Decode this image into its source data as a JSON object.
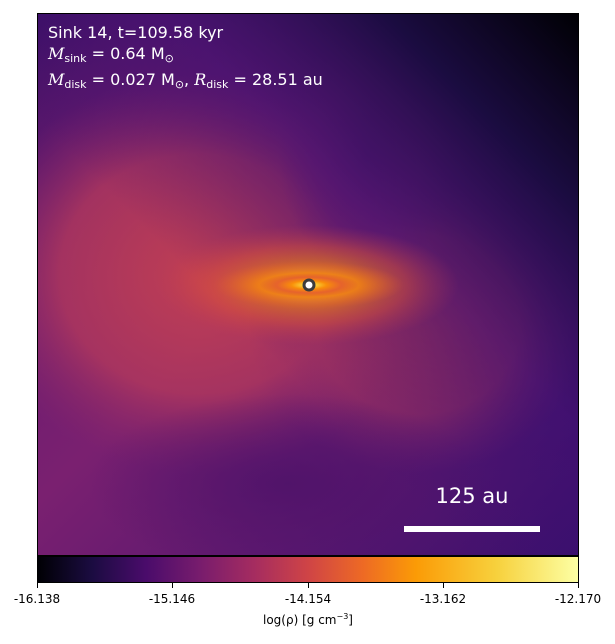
{
  "header": {
    "line1": "Sink 14, t=109.58 kyr",
    "msink_symbol": "M",
    "msink_sub": "sink",
    "msink_value": " = 0.64 M",
    "msink_sun": "⊙",
    "mdisk_symbol": "M",
    "mdisk_sub": "disk",
    "mdisk_value": " = 0.027 M",
    "mdisk_sun": "⊙",
    "rdisk_prefix": ", ",
    "rdisk_symbol": "R",
    "rdisk_sub": "disk",
    "rdisk_value": " = 28.51 au"
  },
  "scale_bar": {
    "label": "125 au"
  },
  "colorbar": {
    "colormap": "inferno",
    "tick_labels": [
      "-16.138",
      "-15.146",
      "-14.154",
      "-13.162",
      "-12.170"
    ],
    "label_prefix": "log(ρ) [g cm",
    "label_exp": "−3",
    "label_suffix": "]"
  },
  "colors": {
    "sink_marker_fill": "#ffffff",
    "sink_marker_edge": "#3c3c3c",
    "text_on_image": "#ffffff"
  }
}
